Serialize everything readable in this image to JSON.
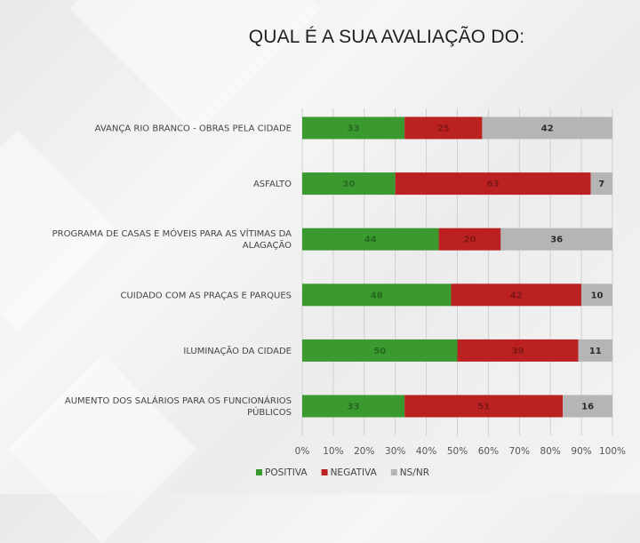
{
  "chart_data": {
    "type": "bar",
    "orientation": "horizontal",
    "stacked": true,
    "title": "QUAL É A SUA AVALIAÇÃO DO:",
    "categories": [
      [
        "AVANÇA RIO BRANCO - OBRAS PELA CIDADE"
      ],
      [
        "ASFALTO"
      ],
      [
        "PROGRAMA DE CASAS E MÓVEIS PARA AS VÍTIMAS DA",
        "ALAGAÇÃO"
      ],
      [
        "CUIDADO COM AS PRAÇAS E PARQUES"
      ],
      [
        "ILUMINAÇÃO DA CIDADE"
      ],
      [
        "AUMENTO DOS SALÁRIOS PARA OS FUNCIONÁRIOS",
        "PÚBLICOS"
      ]
    ],
    "series": [
      {
        "name": "POSITIVA",
        "color": "#3a9a2f",
        "values": [
          33,
          30,
          44,
          48,
          50,
          33
        ]
      },
      {
        "name": "NEGATIVA",
        "color": "#bb2121",
        "values": [
          25,
          63,
          20,
          42,
          39,
          51
        ]
      },
      {
        "name": "NS/NR",
        "color": "#b5b5b5",
        "values": [
          42,
          7,
          36,
          10,
          11,
          16
        ]
      }
    ],
    "x_ticks": [
      "0%",
      "10%",
      "20%",
      "30%",
      "40%",
      "50%",
      "60%",
      "70%",
      "80%",
      "90%",
      "100%"
    ],
    "xlim": [
      0,
      100
    ],
    "grid": true,
    "legend_position": "bottom"
  }
}
